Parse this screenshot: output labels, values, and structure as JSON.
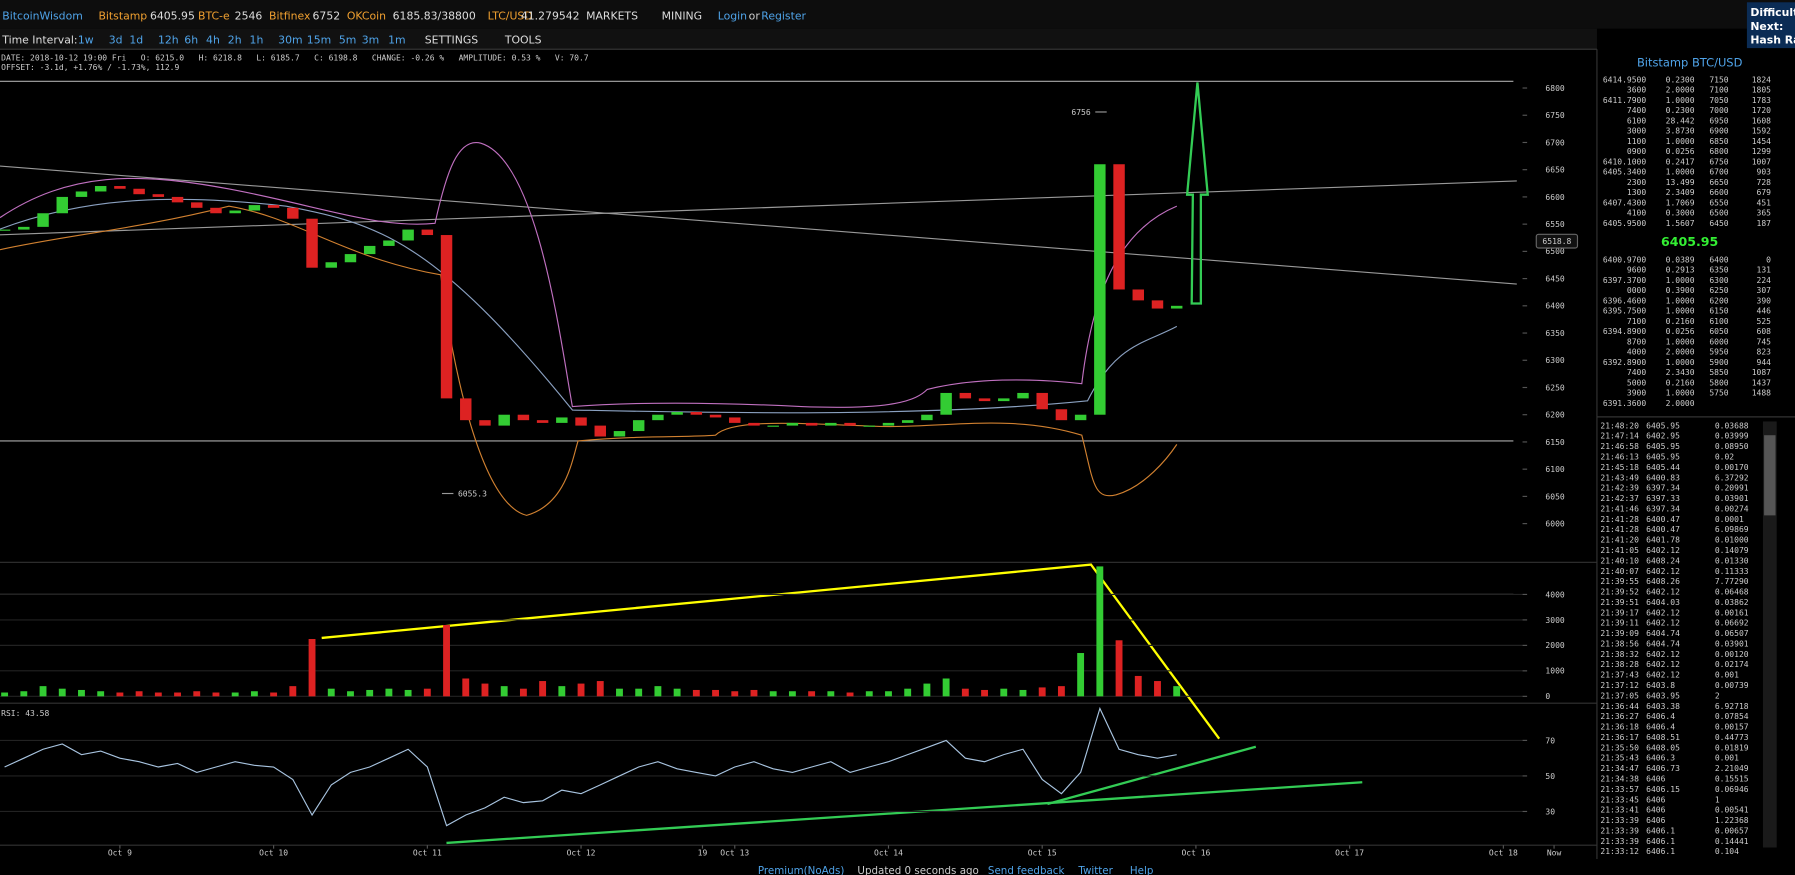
{
  "header": {
    "brand": "BitcoinWisdom",
    "tickers": [
      {
        "name": "Bitstamp",
        "price": "6405.95"
      },
      {
        "name": "BTC-e",
        "price": "2546"
      },
      {
        "name": "Bitfinex",
        "price": "6752"
      },
      {
        "name": "OKCoin",
        "price": "6185.83/38800"
      },
      {
        "name": "LTC/USD",
        "price": "41.279542"
      }
    ],
    "menus": [
      "MARKETS",
      "MINING"
    ],
    "login": "Login",
    "or": "or",
    "register": "Register",
    "side": [
      "Difficulty",
      "Next:",
      "Hash Rat"
    ]
  },
  "toolbar": {
    "label": "Time Interval:",
    "intervals": [
      "1w",
      "3d",
      "1d",
      "12h",
      "6h",
      "4h",
      "2h",
      "1h",
      "30m",
      "15m",
      "5m",
      "3m",
      "1m"
    ],
    "settings": "SETTINGS",
    "tools": "TOOLS"
  },
  "info": {
    "line1": "DATE: 2018-10-12 19:00 Fri   O: 6215.0   H: 6218.8   L: 6185.7   C: 6198.8   CHANGE: -0.26 %   AMPLITUDE: 0.53 %   V: 70.7",
    "line2": "OFFSET: -3.1d, +1.76% / -1.73%, 112.9"
  },
  "chart_data": [
    {
      "type": "candlestick",
      "x": [
        8.25,
        8.375,
        8.5,
        8.625,
        8.75,
        8.875,
        9,
        9.125,
        9.25,
        9.375,
        9.5,
        9.625,
        9.75,
        9.875,
        10,
        10.125,
        10.25,
        10.375,
        10.5,
        10.625,
        10.75,
        10.875,
        11,
        11.125,
        11.25,
        11.375,
        11.5,
        11.625,
        11.75,
        11.875,
        12,
        12.125,
        12.25,
        12.375,
        12.5,
        12.625,
        12.75,
        12.875,
        13,
        13.125,
        13.25,
        13.375,
        13.5,
        13.625,
        13.75,
        13.875,
        14,
        14.125,
        14.25,
        14.375,
        14.5,
        14.625,
        14.75,
        14.875,
        15,
        15.125,
        15.25,
        15.375,
        15.5,
        15.625,
        15.75,
        15.875
      ],
      "values": [
        6540,
        6545,
        6570,
        6600,
        6610,
        6620,
        6615,
        6605,
        6600,
        6590,
        6580,
        6570,
        6575,
        6585,
        6580,
        6560,
        6470,
        6480,
        6495,
        6510,
        6520,
        6540,
        6530,
        6230,
        6190,
        6180,
        6200,
        6190,
        6185,
        6195,
        6180,
        6160,
        6170,
        6190,
        6200,
        6205,
        6200,
        6195,
        6185,
        6180,
        6180,
        6185,
        6180,
        6185,
        6180,
        6180,
        6185,
        6190,
        6200,
        6240,
        6230,
        6225,
        6230,
        6240,
        6210,
        6190,
        6200,
        6660,
        6430,
        6410,
        6395,
        6400
      ],
      "xlim": [
        8.22,
        18.11
      ],
      "xticks": [
        {
          "value": 9,
          "label": "Oct 9"
        },
        {
          "value": 10,
          "label": "Oct 10"
        },
        {
          "value": 11,
          "label": "Oct 11"
        },
        {
          "value": 12,
          "label": "Oct 12"
        },
        {
          "value": 12.79,
          "label": "19"
        },
        {
          "value": 13,
          "label": "Oct 13"
        },
        {
          "value": 14,
          "label": "Oct 14"
        },
        {
          "value": 15,
          "label": "Oct 15"
        },
        {
          "value": 16,
          "label": "Oct 16"
        },
        {
          "value": 17,
          "label": "Oct 17"
        },
        {
          "value": 18,
          "label": "Oct 18"
        },
        {
          "value": 18.33,
          "label": "Now"
        }
      ],
      "ylim": [
        5931,
        6867
      ],
      "yticks": [
        6000,
        6050,
        6100,
        6150,
        6200,
        6250,
        6300,
        6350,
        6400,
        6450,
        6500,
        6550,
        6600,
        6650,
        6700,
        6750,
        6800
      ],
      "up_color": "#33cc33",
      "down_color": "#dd2222",
      "last_price": 6518.8,
      "annotations": [
        {
          "value": 6756,
          "x": 15.375
        },
        {
          "value": 6055.3,
          "x": 11.125
        }
      ]
    },
    {
      "type": "bar",
      "values": [
        150,
        200,
        400,
        300,
        250,
        200,
        150,
        200,
        150,
        150,
        200,
        150,
        150,
        200,
        150,
        400,
        2250,
        300,
        200,
        250,
        300,
        250,
        300,
        2800,
        700,
        500,
        400,
        300,
        600,
        400,
        500,
        600,
        300,
        300,
        400,
        300,
        250,
        250,
        200,
        250,
        200,
        200,
        200,
        200,
        150,
        200,
        200,
        300,
        500,
        700,
        300,
        250,
        300,
        250,
        350,
        400,
        1700,
        5100,
        2200,
        800,
        600,
        400
      ],
      "ylim": [
        -180,
        5170
      ],
      "yticks": [
        0,
        1000,
        2000,
        3000,
        4000
      ]
    },
    {
      "type": "line",
      "title": "RSI: 43.58",
      "color": "#a8c4e0",
      "values": [
        55,
        60,
        65,
        68,
        62,
        64,
        60,
        58,
        55,
        57,
        52,
        55,
        58,
        56,
        55,
        48,
        28,
        45,
        52,
        55,
        60,
        65,
        55,
        22,
        28,
        32,
        38,
        35,
        36,
        42,
        40,
        45,
        50,
        55,
        58,
        54,
        52,
        50,
        55,
        58,
        54,
        52,
        55,
        58,
        52,
        55,
        58,
        62,
        66,
        70,
        60,
        58,
        62,
        65,
        48,
        40,
        52,
        88,
        65,
        62,
        60,
        62
      ],
      "ylim": [
        11,
        89
      ],
      "yticks": [
        30,
        50,
        70
      ]
    }
  ],
  "order_book": {
    "title": "Bitstamp BTC/USD",
    "asks": [
      [
        "6414.9500",
        "0.2300",
        "7150",
        "1824"
      ],
      [
        "3600",
        "2.0000",
        "7100",
        "1805"
      ],
      [
        "6411.7900",
        "1.0000",
        "7050",
        "1783"
      ],
      [
        "7400",
        "0.2300",
        "7000",
        "1720"
      ],
      [
        "6100",
        "28.442",
        "6950",
        "1608"
      ],
      [
        "3000",
        "3.8730",
        "6900",
        "1592"
      ],
      [
        "1100",
        "1.0000",
        "6850",
        "1454"
      ],
      [
        "0900",
        "0.0256",
        "6800",
        "1299"
      ],
      [
        "6410.1000",
        "0.2417",
        "6750",
        "1007"
      ],
      [
        "6405.3400",
        "1.0000",
        "6700",
        "903"
      ],
      [
        "2300",
        "13.499",
        "6650",
        "728"
      ],
      [
        "1300",
        "2.3409",
        "6600",
        "679"
      ],
      [
        "6407.4300",
        "1.7069",
        "6550",
        "451"
      ],
      [
        "4100",
        "0.3000",
        "6500",
        "365"
      ],
      [
        "6405.9500",
        "1.5607",
        "6450",
        "187"
      ]
    ],
    "last": "6405.95",
    "bids": [
      [
        "6400.9700",
        "0.0389",
        "6400",
        "0"
      ],
      [
        "9600",
        "0.2913",
        "6350",
        "131"
      ],
      [
        "6397.3700",
        "1.0000",
        "6300",
        "224"
      ],
      [
        "0000",
        "0.3900",
        "6250",
        "307"
      ],
      [
        "6396.4600",
        "1.0000",
        "6200",
        "390"
      ],
      [
        "6395.7500",
        "1.0000",
        "6150",
        "446"
      ],
      [
        "7100",
        "0.2160",
        "6100",
        "525"
      ],
      [
        "6394.8900",
        "0.0256",
        "6050",
        "608"
      ],
      [
        "8700",
        "1.0000",
        "6000",
        "745"
      ],
      [
        "4000",
        "2.0000",
        "5950",
        "823"
      ],
      [
        "6392.8900",
        "1.0000",
        "5900",
        "944"
      ],
      [
        "7400",
        "2.3430",
        "5850",
        "1087"
      ],
      [
        "5000",
        "0.2160",
        "5800",
        "1437"
      ],
      [
        "3900",
        "1.0000",
        "5750",
        "1488"
      ],
      [
        "6391.3600",
        "2.0000"
      ]
    ]
  },
  "trades": [
    [
      "21:48:20",
      "6405.95",
      "0.03688",
      "buy"
    ],
    [
      "21:47:14",
      "6402.95",
      "0.03999",
      "sell"
    ],
    [
      "21:46:58",
      "6405.95",
      "0.08950",
      "buy"
    ],
    [
      "21:46:13",
      "6405.95",
      "0.02",
      "buy"
    ],
    [
      "21:45:18",
      "6405.44",
      "0.00170",
      "buy"
    ],
    [
      "21:43:49",
      "6400.83",
      "6.37292",
      "buy"
    ],
    [
      "21:42:39",
      "6397.34",
      "0.20991",
      "buy"
    ],
    [
      "21:42:37",
      "6397.33",
      "0.03901",
      "buy"
    ],
    [
      "21:41:46",
      "6397.34",
      "0.00274",
      "sell"
    ],
    [
      "21:41:28",
      "6400.47",
      "0.0001",
      "sell"
    ],
    [
      "21:41:28",
      "6400.47",
      "6.09869",
      "sell"
    ],
    [
      "21:41:20",
      "6401.78",
      "0.01000",
      "sell"
    ],
    [
      "21:41:05",
      "6402.12",
      "0.14079",
      "buy"
    ],
    [
      "21:40:10",
      "6408.24",
      "0.01330",
      "buy"
    ],
    [
      "21:40:07",
      "6402.12",
      "0.11333",
      "sell"
    ],
    [
      "21:39:55",
      "6408.26",
      "7.77290",
      "buy"
    ],
    [
      "21:39:52",
      "6402.12",
      "0.06468",
      "sell"
    ],
    [
      "21:39:51",
      "6404.03",
      "0.03862",
      "buy"
    ],
    [
      "21:39:17",
      "6402.12",
      "0.00161",
      "sell"
    ],
    [
      "21:39:11",
      "6402.12",
      "0.06692",
      "sell"
    ],
    [
      "21:39:09",
      "6404.74",
      "0.06507",
      "buy"
    ],
    [
      "21:38:56",
      "6404.74",
      "0.03901",
      "buy"
    ],
    [
      "21:38:32",
      "6402.12",
      "0.00120",
      "sell"
    ],
    [
      "21:38:28",
      "6402.12",
      "0.02174",
      "sell"
    ],
    [
      "21:37:43",
      "6402.12",
      "0.001",
      "sell"
    ],
    [
      "21:37:12",
      "6403.8",
      "0.00739",
      "buy"
    ],
    [
      "21:37:05",
      "6403.95",
      "2",
      "buy"
    ],
    [
      "21:36:44",
      "6403.38",
      "6.92718",
      "sell"
    ],
    [
      "21:36:27",
      "6406.4",
      "0.07854",
      "sell"
    ],
    [
      "21:36:18",
      "6406.4",
      "0.00157",
      "sell"
    ],
    [
      "21:36:17",
      "6408.51",
      "0.44773",
      "buy"
    ],
    [
      "21:35:50",
      "6408.05",
      "0.01819",
      "buy"
    ],
    [
      "21:35:43",
      "6406.3",
      "0.001",
      "sell"
    ],
    [
      "21:34:47",
      "6406.73",
      "2.21049",
      "buy"
    ],
    [
      "21:34:38",
      "6406",
      "0.15515",
      "sell"
    ],
    [
      "21:33:57",
      "6406.15",
      "0.06946",
      "buy"
    ],
    [
      "21:33:45",
      "6406",
      "1",
      "sell"
    ],
    [
      "21:33:41",
      "6406",
      "0.00541",
      "sell"
    ],
    [
      "21:33:39",
      "6406",
      "1.22368",
      "sell"
    ],
    [
      "21:33:39",
      "6406.1",
      "0.00657",
      "sell"
    ],
    [
      "21:33:39",
      "6406.1",
      "0.14441",
      "sell"
    ],
    [
      "21:33:12",
      "6406.1",
      "0.104",
      "sell"
    ]
  ],
  "footer": [
    "Premium(NoAds)",
    "Updated 0 seconds ago",
    "Send feedback",
    "Twitter",
    "Help"
  ]
}
